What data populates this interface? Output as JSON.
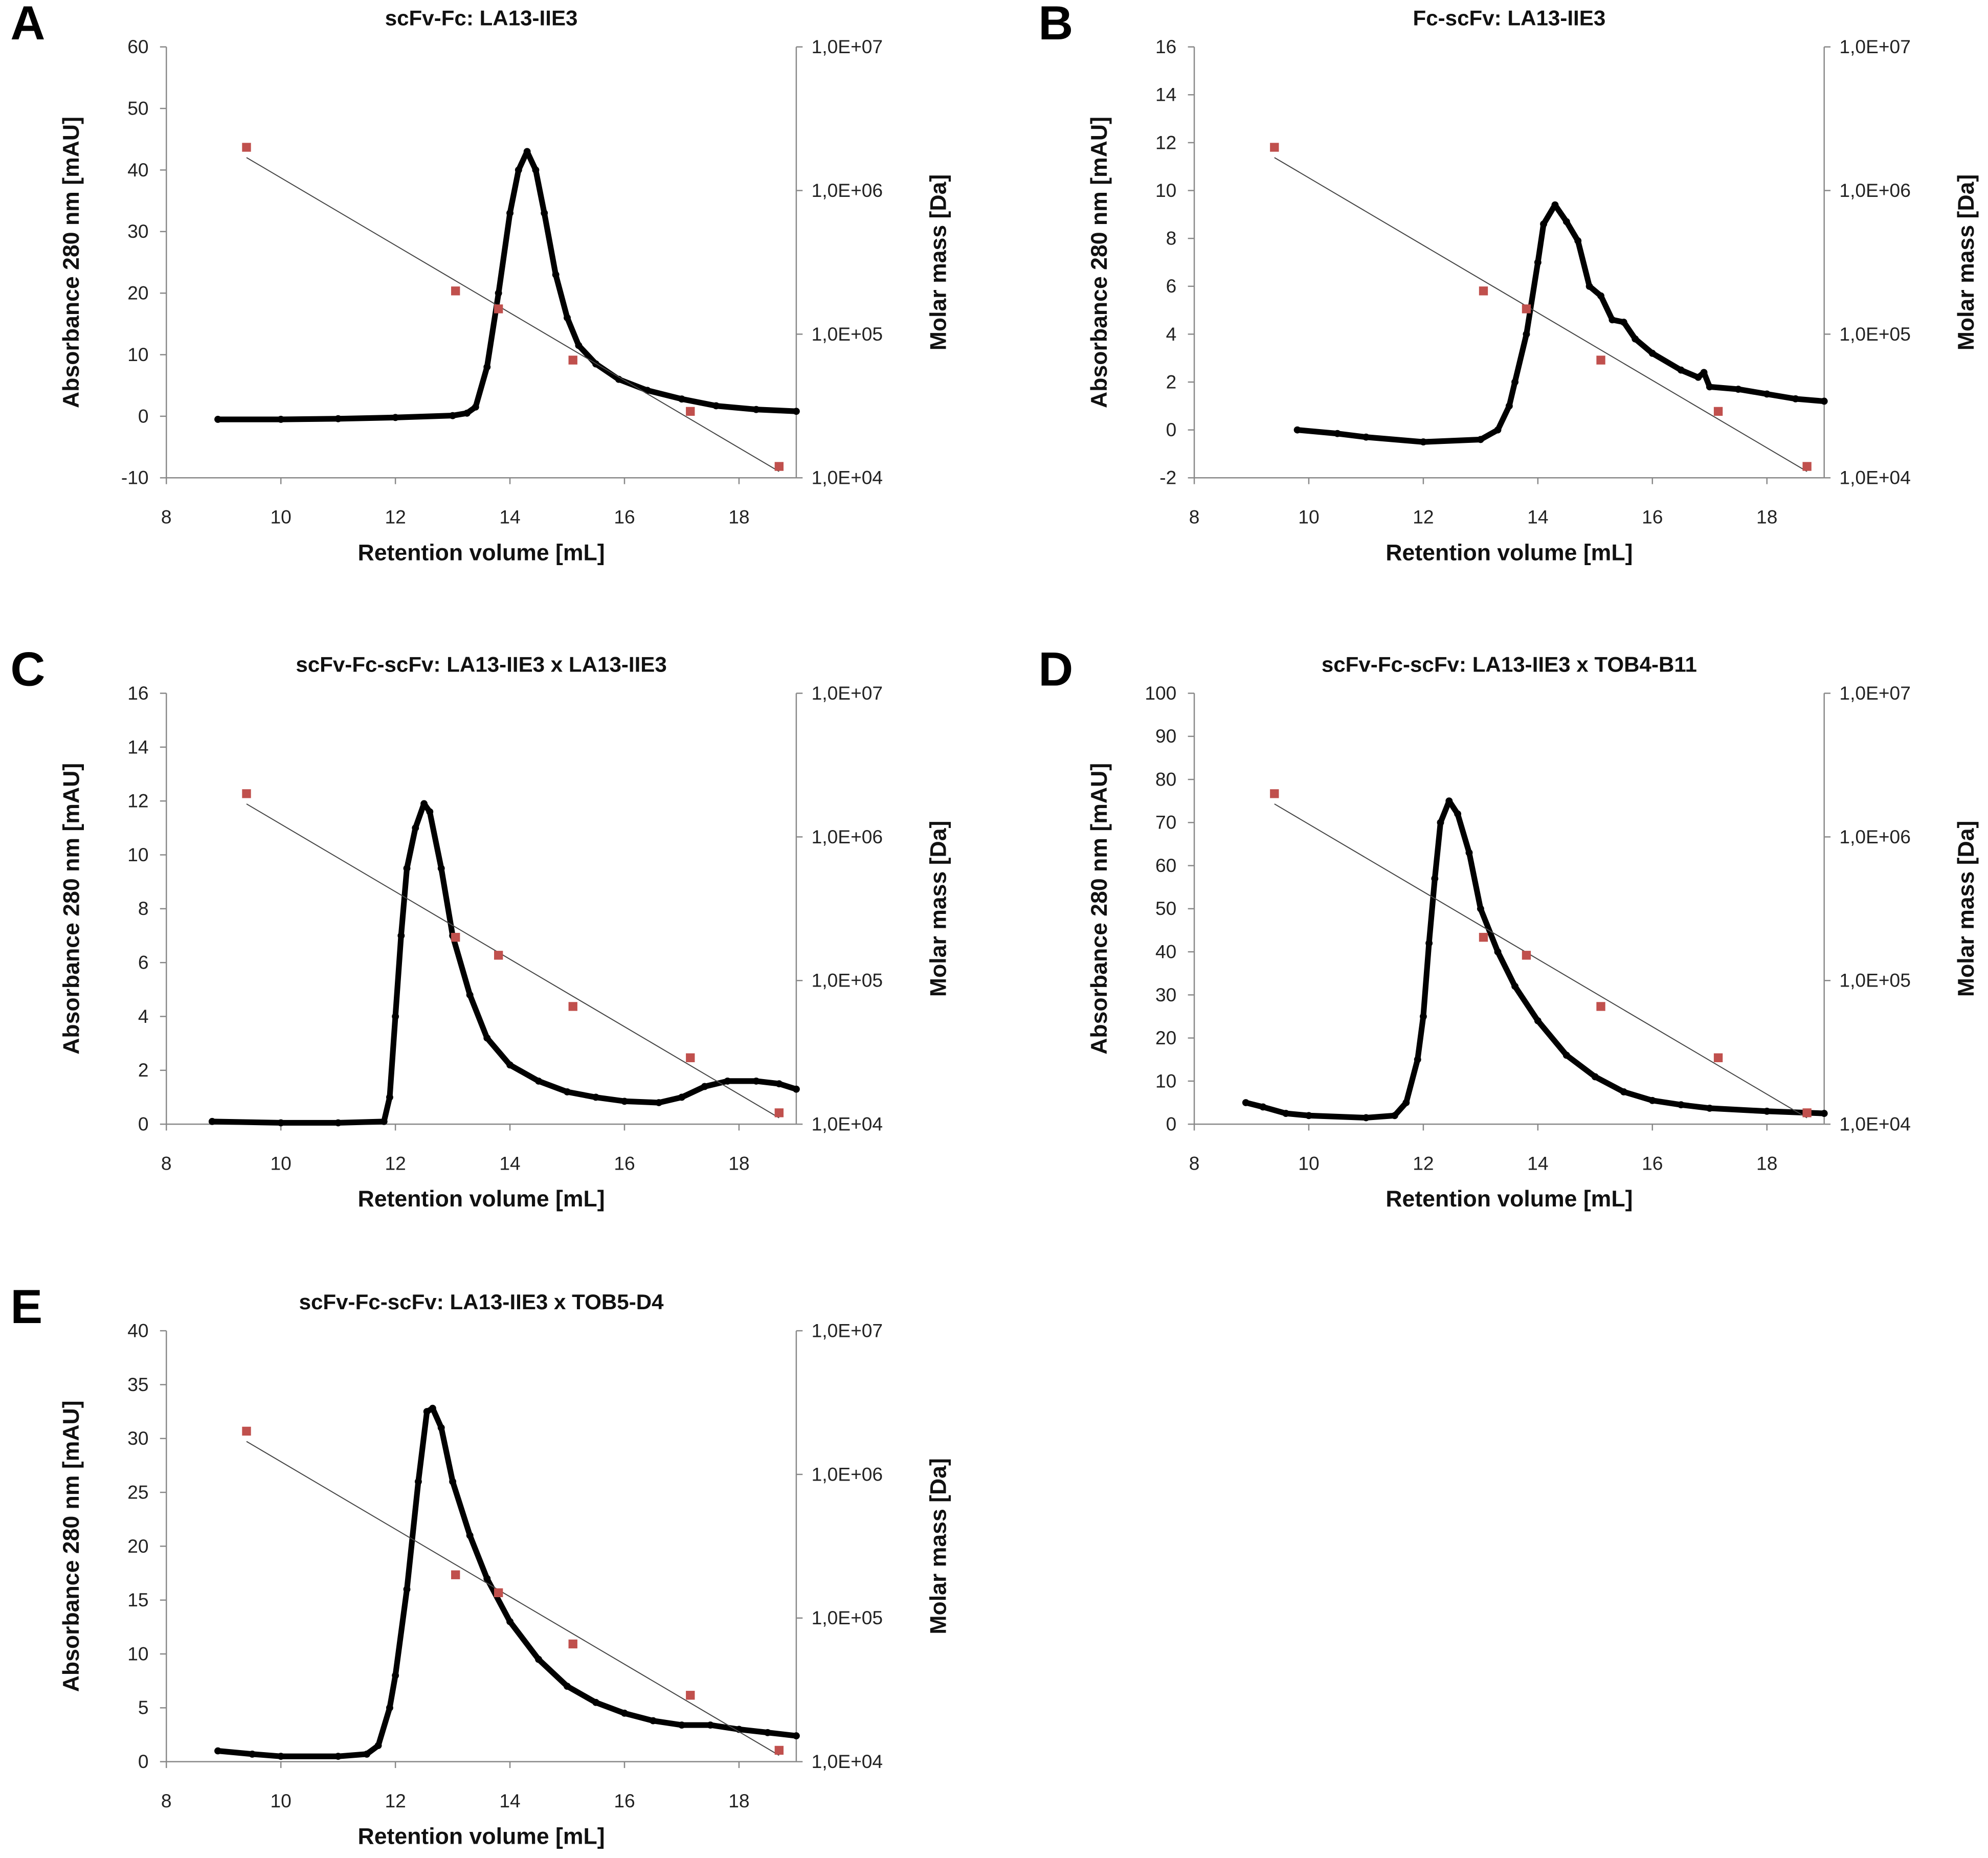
{
  "chart_data": [
    {
      "type": "scatter",
      "panel": "A",
      "title": "scFv-Fc: LA13-IIE3",
      "xlabel": "Retention volume [mL]",
      "ylabel": "Absorbance 280 nm [mAU]",
      "y2label": "Molar mass [Da]",
      "xlim": [
        8,
        19
      ],
      "xticks": [
        8,
        10,
        12,
        14,
        16,
        18
      ],
      "ylim": [
        -10,
        60
      ],
      "yticks": [
        -10,
        0,
        10,
        20,
        30,
        40,
        50,
        60
      ],
      "y2ticks": [
        "1,0E+04",
        "1,0E+05",
        "1,0E+06",
        "1,0E+07"
      ],
      "y2lim": [
        10000,
        10000000
      ],
      "y2scale": "log",
      "absorbance": [
        [
          8.9,
          -0.5
        ],
        [
          10,
          -0.5
        ],
        [
          11,
          -0.4
        ],
        [
          12,
          -0.2
        ],
        [
          13,
          0.1
        ],
        [
          13.25,
          0.5
        ],
        [
          13.4,
          1.5
        ],
        [
          13.6,
          8
        ],
        [
          13.8,
          20
        ],
        [
          14.0,
          33
        ],
        [
          14.15,
          40
        ],
        [
          14.3,
          43
        ],
        [
          14.45,
          40
        ],
        [
          14.6,
          33
        ],
        [
          14.8,
          23
        ],
        [
          15.0,
          16
        ],
        [
          15.2,
          11.5
        ],
        [
          15.5,
          8.5
        ],
        [
          15.9,
          6
        ],
        [
          16.4,
          4.2
        ],
        [
          17.0,
          2.8
        ],
        [
          17.6,
          1.7
        ],
        [
          18.3,
          1.1
        ],
        [
          19,
          0.8
        ]
      ],
      "standards": [
        [
          9.4,
          2000000
        ],
        [
          13.05,
          200000
        ],
        [
          13.8,
          150000
        ],
        [
          15.1,
          66000
        ],
        [
          17.15,
          29000
        ],
        [
          18.7,
          12000
        ]
      ]
    },
    {
      "type": "scatter",
      "panel": "B",
      "title": "Fc-scFv: LA13-IIE3",
      "xlabel": "Retention volume [mL]",
      "ylabel": "Absorbance 280 nm [mAU]",
      "y2label": "Molar mass [Da]",
      "xlim": [
        8,
        19
      ],
      "xticks": [
        8,
        10,
        12,
        14,
        16,
        18
      ],
      "ylim": [
        -2,
        16
      ],
      "yticks": [
        -2,
        0,
        2,
        4,
        6,
        8,
        10,
        12,
        14,
        16
      ],
      "y2ticks": [
        "1,0E+04",
        "1,0E+05",
        "1,0E+06",
        "1,0E+07"
      ],
      "y2lim": [
        10000,
        10000000
      ],
      "y2scale": "log",
      "absorbance": [
        [
          9.8,
          0
        ],
        [
          10.5,
          -0.15
        ],
        [
          11,
          -0.3
        ],
        [
          12,
          -0.5
        ],
        [
          13,
          -0.4
        ],
        [
          13.3,
          0
        ],
        [
          13.5,
          1
        ],
        [
          13.6,
          2
        ],
        [
          13.8,
          4
        ],
        [
          14.0,
          7
        ],
        [
          14.1,
          8.6
        ],
        [
          14.3,
          9.4
        ],
        [
          14.5,
          8.7
        ],
        [
          14.7,
          7.9
        ],
        [
          14.9,
          6
        ],
        [
          15.1,
          5.6
        ],
        [
          15.3,
          4.6
        ],
        [
          15.5,
          4.5
        ],
        [
          15.7,
          3.8
        ],
        [
          16.0,
          3.2
        ],
        [
          16.5,
          2.5
        ],
        [
          16.8,
          2.2
        ],
        [
          16.9,
          2.4
        ],
        [
          17.0,
          1.8
        ],
        [
          17.5,
          1.7
        ],
        [
          18,
          1.5
        ],
        [
          18.5,
          1.3
        ],
        [
          19,
          1.2
        ]
      ],
      "standards": [
        [
          9.4,
          2000000
        ],
        [
          13.05,
          200000
        ],
        [
          13.8,
          150000
        ],
        [
          15.1,
          66000
        ],
        [
          17.15,
          29000
        ],
        [
          18.7,
          12000
        ]
      ]
    },
    {
      "type": "scatter",
      "panel": "C",
      "title": "scFv-Fc-scFv: LA13-IIE3 x LA13-IIE3",
      "xlabel": "Retention volume [mL]",
      "ylabel": "Absorbance 280 nm [mAU]",
      "y2label": "Molar mass [Da]",
      "xlim": [
        8,
        19
      ],
      "xticks": [
        8,
        10,
        12,
        14,
        16,
        18
      ],
      "ylim": [
        0,
        16
      ],
      "yticks": [
        0,
        2,
        4,
        6,
        8,
        10,
        12,
        14,
        16
      ],
      "y2ticks": [
        "1,0E+04",
        "1,0E+05",
        "1,0E+06",
        "1,0E+07"
      ],
      "y2lim": [
        10000,
        10000000
      ],
      "y2scale": "log",
      "absorbance": [
        [
          8.8,
          0.1
        ],
        [
          10,
          0.05
        ],
        [
          11,
          0.05
        ],
        [
          11.8,
          0.1
        ],
        [
          11.9,
          1
        ],
        [
          12.0,
          4
        ],
        [
          12.1,
          7
        ],
        [
          12.2,
          9.5
        ],
        [
          12.35,
          11
        ],
        [
          12.5,
          11.9
        ],
        [
          12.6,
          11.6
        ],
        [
          12.8,
          9.5
        ],
        [
          13.0,
          7
        ],
        [
          13.3,
          4.8
        ],
        [
          13.6,
          3.2
        ],
        [
          14.0,
          2.2
        ],
        [
          14.5,
          1.6
        ],
        [
          15,
          1.2
        ],
        [
          15.5,
          1.0
        ],
        [
          16,
          0.85
        ],
        [
          16.6,
          0.8
        ],
        [
          17,
          1.0
        ],
        [
          17.4,
          1.4
        ],
        [
          17.8,
          1.6
        ],
        [
          18.3,
          1.6
        ],
        [
          18.7,
          1.5
        ],
        [
          19,
          1.3
        ]
      ],
      "standards": [
        [
          9.4,
          2000000
        ],
        [
          13.05,
          200000
        ],
        [
          13.8,
          150000
        ],
        [
          15.1,
          66000
        ],
        [
          17.15,
          29000
        ],
        [
          18.7,
          12000
        ]
      ]
    },
    {
      "type": "scatter",
      "panel": "D",
      "title": "scFv-Fc-scFv: LA13-IIE3 x TOB4-B11",
      "xlabel": "Retention volume [mL]",
      "ylabel": "Absorbance 280 nm [mAU]",
      "y2label": "Molar mass [Da]",
      "xlim": [
        8,
        19
      ],
      "xticks": [
        8,
        10,
        12,
        14,
        16,
        18
      ],
      "ylim": [
        0,
        100
      ],
      "yticks": [
        0,
        10,
        20,
        30,
        40,
        50,
        60,
        70,
        80,
        90,
        100
      ],
      "y2ticks": [
        "1,0E+04",
        "1,0E+05",
        "1,0E+06",
        "1,0E+07"
      ],
      "y2lim": [
        10000,
        10000000
      ],
      "y2scale": "log",
      "absorbance": [
        [
          8.9,
          5
        ],
        [
          9.2,
          4
        ],
        [
          9.6,
          2.5
        ],
        [
          10,
          2
        ],
        [
          11,
          1.5
        ],
        [
          11.5,
          2
        ],
        [
          11.7,
          5
        ],
        [
          11.9,
          15
        ],
        [
          12.0,
          25
        ],
        [
          12.1,
          42
        ],
        [
          12.2,
          57
        ],
        [
          12.3,
          70
        ],
        [
          12.45,
          75
        ],
        [
          12.6,
          72
        ],
        [
          12.8,
          63
        ],
        [
          13.0,
          50
        ],
        [
          13.3,
          40
        ],
        [
          13.6,
          32
        ],
        [
          14,
          24
        ],
        [
          14.5,
          16
        ],
        [
          15,
          11
        ],
        [
          15.5,
          7.5
        ],
        [
          16,
          5.5
        ],
        [
          16.5,
          4.5
        ],
        [
          17,
          3.7
        ],
        [
          18,
          3
        ],
        [
          19,
          2.5
        ]
      ],
      "standards": [
        [
          9.4,
          2000000
        ],
        [
          13.05,
          200000
        ],
        [
          13.8,
          150000
        ],
        [
          15.1,
          66000
        ],
        [
          17.15,
          29000
        ],
        [
          18.7,
          12000
        ]
      ]
    },
    {
      "type": "scatter",
      "panel": "E",
      "title": "scFv-Fc-scFv: LA13-IIE3 x TOB5-D4",
      "xlabel": "Retention volume [mL]",
      "ylabel": "Absorbance 280 nm [mAU]",
      "y2label": "Molar mass [Da]",
      "xlim": [
        8,
        19
      ],
      "xticks": [
        8,
        10,
        12,
        14,
        16,
        18
      ],
      "ylim": [
        0,
        40
      ],
      "yticks": [
        0,
        5,
        10,
        15,
        20,
        25,
        30,
        35,
        40
      ],
      "y2ticks": [
        "1,0E+04",
        "1,0E+05",
        "1,0E+06",
        "1,0E+07"
      ],
      "y2lim": [
        10000,
        10000000
      ],
      "y2scale": "log",
      "absorbance": [
        [
          8.9,
          1
        ],
        [
          9.5,
          0.7
        ],
        [
          10,
          0.5
        ],
        [
          11,
          0.5
        ],
        [
          11.5,
          0.7
        ],
        [
          11.7,
          1.5
        ],
        [
          11.9,
          5
        ],
        [
          12.0,
          8
        ],
        [
          12.2,
          16
        ],
        [
          12.4,
          26
        ],
        [
          12.55,
          32.5
        ],
        [
          12.65,
          32.8
        ],
        [
          12.8,
          31
        ],
        [
          13.0,
          26
        ],
        [
          13.3,
          21
        ],
        [
          13.6,
          17
        ],
        [
          14,
          13
        ],
        [
          14.5,
          9.5
        ],
        [
          15,
          7
        ],
        [
          15.5,
          5.5
        ],
        [
          16,
          4.5
        ],
        [
          16.5,
          3.8
        ],
        [
          17,
          3.4
        ],
        [
          17.5,
          3.4
        ],
        [
          18,
          3
        ],
        [
          18.5,
          2.7
        ],
        [
          19,
          2.4
        ]
      ],
      "standards": [
        [
          9.4,
          2000000
        ],
        [
          13.05,
          200000
        ],
        [
          13.8,
          150000
        ],
        [
          15.1,
          66000
        ],
        [
          17.15,
          29000
        ],
        [
          18.7,
          12000
        ]
      ]
    }
  ],
  "colors": {
    "curve": "#000000",
    "standard": "#c0504d",
    "trend": "#444444",
    "axis": "#888888"
  }
}
